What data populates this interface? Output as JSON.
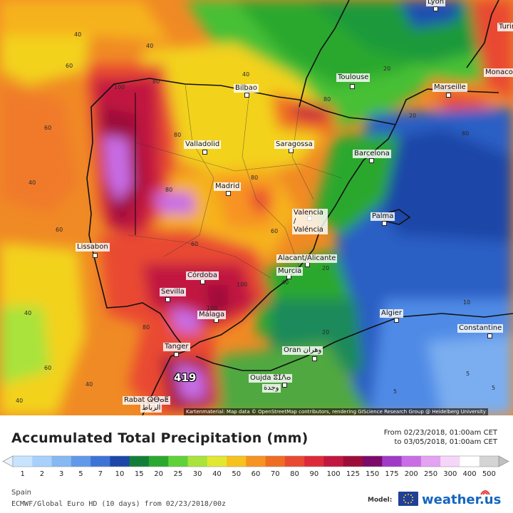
{
  "map": {
    "cities": [
      {
        "name": "Lyon"
      },
      {
        "name": "Turin"
      },
      {
        "name": "Monaco"
      },
      {
        "name": "Toulouse"
      },
      {
        "name": "Marseille"
      },
      {
        "name": "Bilbao"
      },
      {
        "name": "Saragossa"
      },
      {
        "name": "Barcelona"
      },
      {
        "name": "Valladolid"
      },
      {
        "name": "Madrid"
      },
      {
        "name": "Valencia / Valéncia"
      },
      {
        "name": "Palma"
      },
      {
        "name": "Lissabon"
      },
      {
        "name": "Alacant/Alicante"
      },
      {
        "name": "Murcia"
      },
      {
        "name": "Córdoba"
      },
      {
        "name": "Sevilla"
      },
      {
        "name": "Málaga"
      },
      {
        "name": "Algier"
      },
      {
        "name": "Constantine"
      },
      {
        "name": "Tanger"
      },
      {
        "name": "Oran وهران"
      },
      {
        "name": "Oujda ⵓⵊⴷⴰ"
      },
      {
        "name": "Rabat ⵕⴱⴰⵟ"
      },
      {
        "name": "وجدة"
      },
      {
        "name": "الرباط"
      }
    ],
    "max_value_label": "419",
    "contour_labels": [
      "40",
      "40",
      "40",
      "40",
      "40",
      "60",
      "60",
      "60",
      "60",
      "60",
      "60",
      "80",
      "80",
      "80",
      "80",
      "80",
      "80",
      "80",
      "100",
      "100",
      "100",
      "100",
      "20",
      "20",
      "20",
      "20",
      "10",
      "10",
      "5",
      "5",
      "5",
      "5",
      "60",
      "40",
      "40",
      "40",
      "60",
      "60",
      "80",
      "60",
      "60",
      "100",
      "40",
      "60"
    ],
    "credits": "Kartenmaterial: Map data © OpenStreetMap contributors, rendering GIScience Research Group @ Heidelberg University"
  },
  "legend": {
    "title": "Accumulated Total Precipitation (mm)",
    "from": "From 02/23/2018, 01:00am CET",
    "to": "to 03/05/2018, 01:00am CET",
    "unit": "mm",
    "levels": [
      "1",
      "2",
      "3",
      "5",
      "7",
      "10",
      "15",
      "20",
      "25",
      "30",
      "40",
      "50",
      "60",
      "70",
      "80",
      "90",
      "100",
      "125",
      "150",
      "175",
      "200",
      "250",
      "300",
      "400",
      "500"
    ],
    "colors": [
      "#c6e4ff",
      "#a7d0fb",
      "#86b8f2",
      "#6199ea",
      "#3e73d6",
      "#1c46a8",
      "#137e3a",
      "#2ba82f",
      "#5fd238",
      "#a9e33b",
      "#e1e830",
      "#f6c21e",
      "#f79320",
      "#ef6c23",
      "#e94832",
      "#dc2a3a",
      "#c11640",
      "#9c0d3a",
      "#7c0a6b",
      "#a03ac7",
      "#c86de6",
      "#e3a2f2",
      "#f5d6f9",
      "#ffffff",
      "#d4d4d4"
    ]
  },
  "footer": {
    "region": "Spain",
    "model": "ECMWF/Global Euro HD (10 days) from 02/23/2018/00z",
    "model_label": "Model:",
    "brand": "weather.us"
  }
}
